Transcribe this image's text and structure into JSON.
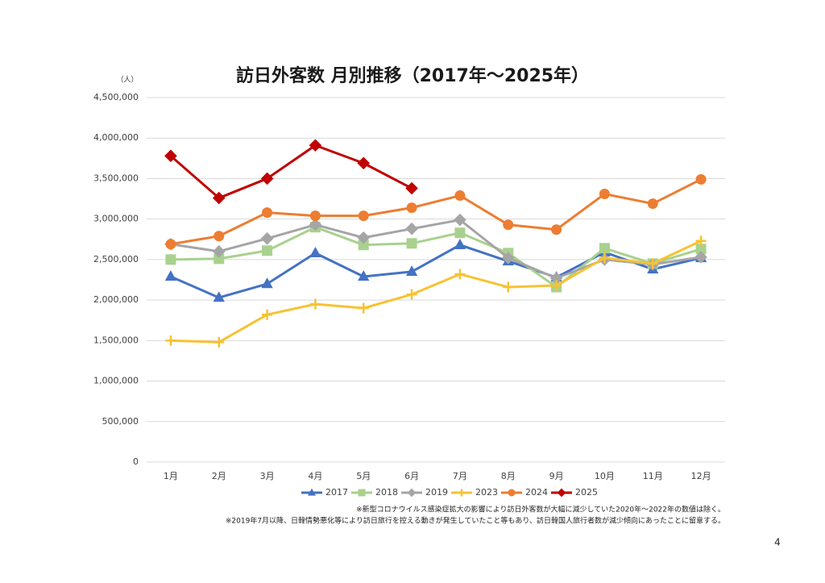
{
  "chart_data": {
    "type": "line",
    "title": "訪日外客数 月別推移（2017年～2025年）",
    "y_unit": "（人）",
    "categories": [
      "1月",
      "2月",
      "3月",
      "4月",
      "5月",
      "6月",
      "7月",
      "8月",
      "9月",
      "10月",
      "11月",
      "12月"
    ],
    "ylim": [
      0,
      4500000
    ],
    "yticks": [
      0,
      {
        "value": 500000,
        "label": "500,000"
      },
      {
        "value": 1000000,
        "label": "1,000,000"
      },
      {
        "value": 1500000,
        "label": "1,500,000"
      },
      {
        "value": 2000000,
        "label": "2,000,000"
      },
      {
        "value": 2500000,
        "label": "2,500,000"
      },
      {
        "value": 3000000,
        "label": "3,000,000"
      },
      {
        "value": 3500000,
        "label": "3,500,000"
      },
      {
        "value": 4000000,
        "label": "4,000,000"
      },
      {
        "value": 4500000,
        "label": "4,500,000"
      }
    ],
    "grid": true,
    "legend": "bottom",
    "series": [
      {
        "name": "2017",
        "color": "#4472c4",
        "marker": "triangle",
        "values": [
          2290000,
          2030000,
          2200000,
          2580000,
          2290000,
          2350000,
          2680000,
          2480000,
          2280000,
          2590000,
          2380000,
          2520000
        ]
      },
      {
        "name": "2018",
        "color": "#a9d18e",
        "marker": "square",
        "values": [
          2500000,
          2510000,
          2610000,
          2900000,
          2680000,
          2700000,
          2830000,
          2580000,
          2160000,
          2640000,
          2450000,
          2630000
        ]
      },
      {
        "name": "2019",
        "color": "#a5a5a5",
        "marker": "diamond",
        "values": [
          2690000,
          2600000,
          2760000,
          2930000,
          2770000,
          2880000,
          2990000,
          2520000,
          2270000,
          2500000,
          2440000,
          2530000
        ]
      },
      {
        "name": "2023",
        "color": "#f7c233",
        "marker": "plus",
        "values": [
          1500000,
          1480000,
          1820000,
          1950000,
          1900000,
          2070000,
          2320000,
          2160000,
          2180000,
          2520000,
          2450000,
          2730000
        ]
      },
      {
        "name": "2024",
        "color": "#ed7d31",
        "marker": "circle",
        "values": [
          2690000,
          2790000,
          3080000,
          3040000,
          3040000,
          3140000,
          3290000,
          2930000,
          2870000,
          3310000,
          3190000,
          3490000
        ]
      },
      {
        "name": "2025",
        "color": "#c00000",
        "marker": "diamond",
        "values": [
          3780000,
          3260000,
          3500000,
          3910000,
          3690000,
          3380000,
          null,
          null,
          null,
          null,
          null,
          null
        ]
      }
    ],
    "notes": [
      "※新型コロナウイルス感染症拡大の影響により訪日外客数が大幅に減少していた2020年～2022年の数値は除く。",
      "※2019年7月以降、日韓情勢悪化等により訪日旅行を控える動きが発生していたこと等もあり、訪日韓国人旅行者数が減少傾向にあったことに留意する。"
    ],
    "page_number": "4"
  }
}
